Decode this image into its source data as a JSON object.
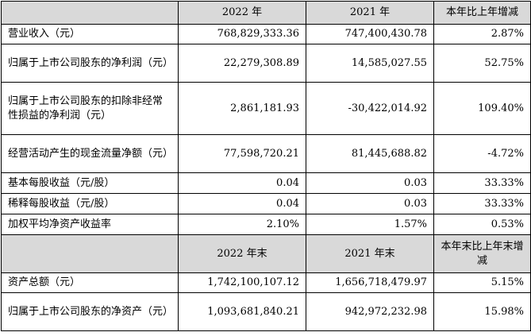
{
  "header1": {
    "col1": "2022 年",
    "col2": "2021 年",
    "col3": "本年比上年增减"
  },
  "rows1": [
    {
      "label": "营业收入（元）",
      "v2022": "768,829,333.36",
      "v2021": "747,400,430.78",
      "change": "2.87%"
    },
    {
      "label": "归属于上市公司股东的净利润（元）",
      "v2022": "22,279,308.89",
      "v2021": "14,585,027.55",
      "change": "52.75%"
    },
    {
      "label": "归属于上市公司股东的扣除非经常性损益的净利润（元）",
      "v2022": "2,861,181.93",
      "v2021": "-30,422,014.92",
      "change": "109.40%"
    },
    {
      "label": "经营活动产生的现金流量净额（元）",
      "v2022": "77,598,720.21",
      "v2021": "81,445,688.82",
      "change": "-4.72%"
    },
    {
      "label": "基本每股收益（元/股）",
      "v2022": "0.04",
      "v2021": "0.03",
      "change": "33.33%"
    },
    {
      "label": "稀释每股收益（元/股）",
      "v2022": "0.04",
      "v2021": "0.03",
      "change": "33.33%"
    },
    {
      "label": "加权平均净资产收益率",
      "v2022": "2.10%",
      "v2021": "1.57%",
      "change": "0.53%"
    }
  ],
  "header2": {
    "col1": "2022 年末",
    "col2": "2021 年末",
    "col3": "本年末比上年末增减"
  },
  "rows2": [
    {
      "label": "资产总额（元）",
      "v2022": "1,742,100,107.12",
      "v2021": "1,656,718,479.97",
      "change": "5.15%"
    },
    {
      "label": "归属于上市公司股东的净资产（元）",
      "v2022": "1,093,681,840.21",
      "v2021": "942,972,232.98",
      "change": "15.98%"
    }
  ]
}
